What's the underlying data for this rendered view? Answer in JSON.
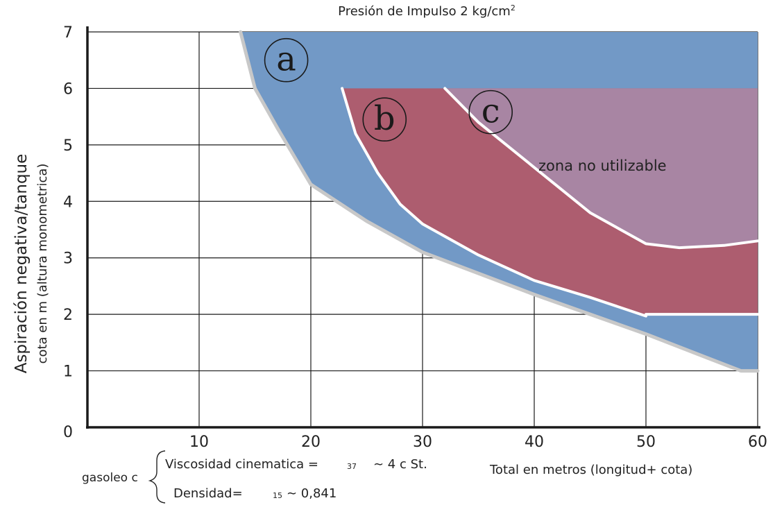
{
  "chart_data": {
    "type": "area",
    "title": "Presión de Impulso 2 kg/cm",
    "title_superscript": "2",
    "ylabel": "Aspiración negativa/tanque",
    "ylabel_sub": "cota en m (altura monometrica)",
    "xlabel": "Total en metros (longitud+ cota)",
    "xlim": [
      0,
      60
    ],
    "ylim": [
      0,
      7
    ],
    "x_ticks": [
      10,
      20,
      30,
      40,
      50,
      60
    ],
    "y_ticks": [
      0,
      1,
      2,
      3,
      4,
      5,
      6,
      7
    ],
    "grid": true,
    "series": [
      {
        "name": "a",
        "color": "#7299c6",
        "upper": [
          [
            13.7,
            7
          ],
          [
            60,
            7
          ]
        ],
        "lower": [
          [
            13.7,
            7
          ],
          [
            15,
            6
          ],
          [
            17,
            5.3
          ],
          [
            20,
            4.3
          ],
          [
            25,
            3.65
          ],
          [
            30,
            3.1
          ],
          [
            40,
            2.35
          ],
          [
            50,
            1.65
          ],
          [
            58.5,
            1.0
          ],
          [
            60,
            1.0
          ]
        ]
      },
      {
        "name": "b",
        "color": "#ad5d6f",
        "upper": [
          [
            22.8,
            6
          ],
          [
            60,
            6
          ]
        ],
        "lower": [
          [
            22.8,
            6
          ],
          [
            24,
            5.2
          ],
          [
            26,
            4.5
          ],
          [
            28,
            3.95
          ],
          [
            30,
            3.6
          ],
          [
            35,
            3.05
          ],
          [
            40,
            2.6
          ],
          [
            45,
            2.3
          ],
          [
            50,
            1.97
          ],
          [
            50,
            2.0
          ],
          [
            60,
            2.0
          ]
        ]
      },
      {
        "name": "c",
        "color": "#a885a3",
        "upper": [
          [
            32,
            6
          ],
          [
            60,
            6
          ]
        ],
        "lower": [
          [
            32,
            6
          ],
          [
            35,
            5.4
          ],
          [
            40,
            4.6
          ],
          [
            45,
            3.8
          ],
          [
            50,
            3.25
          ],
          [
            53,
            3.18
          ],
          [
            57,
            3.22
          ],
          [
            60,
            3.3
          ]
        ]
      }
    ],
    "annotation": "zona no utilizable"
  },
  "footnote": {
    "fluid": "gasoleo c",
    "viscosity_label": "Viscosidad  cinematica =",
    "viscosity_temp": "37",
    "viscosity_value": "∼ 4 c St.",
    "density_label": "Densidad=",
    "density_temp": "15",
    "density_value": "∼ 0,841"
  }
}
